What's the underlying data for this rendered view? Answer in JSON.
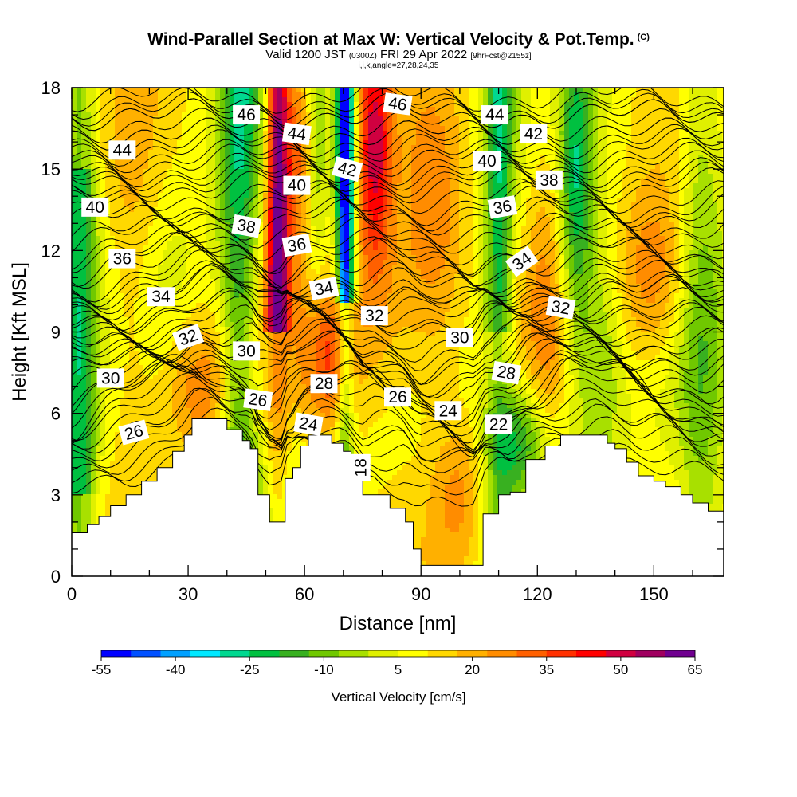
{
  "title": {
    "main": "Wind-Parallel Section at Max W: Vertical Velocity & Pot.Temp.",
    "copyright": "(C)",
    "valid_prefix": "Valid 1200 JST",
    "valid_utc": "(0300Z)",
    "valid_date": "FRI 29 Apr 2022",
    "forecast": "[9hrFcst@2155z]",
    "indices": "i,j,k,angle=27,28,24,35"
  },
  "chart_data": {
    "type": "heatmap",
    "xlabel": "Distance [nm]",
    "ylabel": "Height [Kft MSL]",
    "xlim": [
      0,
      168
    ],
    "ylim": [
      0,
      18
    ],
    "x_ticks": [
      "0",
      "30",
      "60",
      "90",
      "120",
      "150"
    ],
    "y_ticks": [
      "0",
      "3",
      "6",
      "9",
      "12",
      "15",
      "18"
    ],
    "colorbar": {
      "label": "Vertical Velocity [cm/s]",
      "tick_labels": [
        "-55",
        "-40",
        "-25",
        "-10",
        "5",
        "20",
        "35",
        "50",
        "65"
      ],
      "colors": [
        "#0000ff",
        "#0050ff",
        "#00a0ff",
        "#00e8ff",
        "#00d890",
        "#00c040",
        "#38b020",
        "#70c800",
        "#a8e000",
        "#e0f000",
        "#ffff00",
        "#ffd800",
        "#ffb000",
        "#ff8c00",
        "#ff6000",
        "#ff3000",
        "#ff0000",
        "#d00040",
        "#a00060",
        "#700090"
      ]
    },
    "terrain_kft": [
      [
        0,
        1.6
      ],
      [
        1,
        1.6
      ],
      [
        4,
        1.9
      ],
      [
        7,
        2.2
      ],
      [
        10,
        2.6
      ],
      [
        14,
        3.0
      ],
      [
        18,
        3.5
      ],
      [
        22,
        4.0
      ],
      [
        26,
        4.6
      ],
      [
        29,
        5.2
      ],
      [
        31,
        5.8
      ],
      [
        36,
        5.8
      ],
      [
        40,
        5.4
      ],
      [
        44,
        5.0
      ],
      [
        46,
        4.7
      ],
      [
        48,
        3.0
      ],
      [
        51,
        2.0
      ],
      [
        54,
        2.0
      ],
      [
        55,
        3.6
      ],
      [
        57,
        4.0
      ],
      [
        59,
        4.8
      ],
      [
        61,
        5.2
      ],
      [
        64,
        5.2
      ],
      [
        67,
        4.9
      ],
      [
        70,
        4.6
      ],
      [
        72,
        4.0
      ],
      [
        75,
        3.0
      ],
      [
        78,
        3.0
      ],
      [
        82,
        2.5
      ],
      [
        86,
        2.0
      ],
      [
        88,
        1.0
      ],
      [
        90,
        0.4
      ],
      [
        104,
        0.4
      ],
      [
        106,
        2.3
      ],
      [
        110,
        3.0
      ],
      [
        113,
        3.1
      ],
      [
        117,
        4.3
      ],
      [
        122,
        4.8
      ],
      [
        126,
        5.2
      ],
      [
        135,
        5.2
      ],
      [
        138,
        4.9
      ],
      [
        140,
        4.7
      ],
      [
        143,
        4.2
      ],
      [
        146,
        3.7
      ],
      [
        150,
        3.5
      ],
      [
        153,
        3.3
      ],
      [
        157,
        3.0
      ],
      [
        160,
        2.7
      ],
      [
        164,
        2.4
      ],
      [
        168,
        2.3
      ]
    ],
    "theta_contours": [
      {
        "level": "18",
        "base": 4.2,
        "amp": 0.2,
        "label_x": 74.5,
        "label_y": 4.0,
        "label_rot": -90
      },
      {
        "level": "22",
        "base": 5.2,
        "amp": 0.6,
        "label_x": 110,
        "label_y": 5.6,
        "label_rot": 0
      },
      {
        "level": "24",
        "base": 5.6,
        "amp": 0.6,
        "label_x": 61,
        "label_y": 5.6,
        "label_rot": 10
      },
      {
        "level": "24",
        "base": 5.9,
        "amp": 0.6,
        "label_x": 97,
        "label_y": 6.1,
        "label_rot": 0
      },
      {
        "level": "26",
        "base": 5.4,
        "amp": 1.0,
        "label_x": 16,
        "label_y": 5.3,
        "label_rot": -15
      },
      {
        "level": "26",
        "base": 6.3,
        "amp": 0.6,
        "label_x": 48,
        "label_y": 6.5,
        "label_rot": 8
      },
      {
        "level": "26",
        "base": 6.6,
        "amp": 0.5,
        "label_x": 84,
        "label_y": 6.6,
        "label_rot": 0
      },
      {
        "level": "28",
        "base": 6.9,
        "amp": 0.5,
        "label_x": 65,
        "label_y": 7.1,
        "label_rot": 0
      },
      {
        "level": "28",
        "base": 7.3,
        "amp": 0.5,
        "label_x": 112,
        "label_y": 7.5,
        "label_rot": 10
      },
      {
        "level": "30",
        "base": 7.8,
        "amp": 0.6,
        "label_x": 10,
        "label_y": 7.3,
        "label_rot": 0
      },
      {
        "level": "30",
        "base": 8.3,
        "amp": 0.5,
        "label_x": 45,
        "label_y": 8.3,
        "label_rot": 0
      },
      {
        "level": "30",
        "base": 8.6,
        "amp": 0.5,
        "label_x": 100,
        "label_y": 8.8,
        "label_rot": 0
      },
      {
        "level": "32",
        "base": 9.3,
        "amp": 0.5,
        "label_x": 30,
        "label_y": 8.8,
        "label_rot": -20
      },
      {
        "level": "32",
        "base": 9.6,
        "amp": 0.5,
        "label_x": 78,
        "label_y": 9.6,
        "label_rot": 0
      },
      {
        "level": "32",
        "base": 9.8,
        "amp": 0.5,
        "label_x": 126,
        "label_y": 9.9,
        "label_rot": 10
      },
      {
        "level": "34",
        "base": 10.4,
        "amp": 0.5,
        "label_x": 23,
        "label_y": 10.3,
        "label_rot": 0
      },
      {
        "level": "34",
        "base": 10.6,
        "amp": 0.5,
        "label_x": 65,
        "label_y": 10.6,
        "label_rot": -10
      },
      {
        "level": "34",
        "base": 11.3,
        "amp": 0.6,
        "label_x": 116,
        "label_y": 11.6,
        "label_rot": -35
      },
      {
        "level": "36",
        "base": 11.8,
        "amp": 0.5,
        "label_x": 13,
        "label_y": 11.7,
        "label_rot": 0
      },
      {
        "level": "36",
        "base": 12.2,
        "amp": 0.5,
        "label_x": 58,
        "label_y": 12.2,
        "label_rot": -10
      },
      {
        "level": "36",
        "base": 13.5,
        "amp": 0.5,
        "label_x": 111,
        "label_y": 13.6,
        "label_rot": -10
      },
      {
        "level": "38",
        "base": 12.9,
        "amp": 0.5,
        "label_x": 45,
        "label_y": 12.9,
        "label_rot": 10
      },
      {
        "level": "38",
        "base": 14.6,
        "amp": 0.4,
        "label_x": 123,
        "label_y": 14.6,
        "label_rot": 0
      },
      {
        "level": "40",
        "base": 13.7,
        "amp": 0.5,
        "label_x": 6,
        "label_y": 13.6,
        "label_rot": 0
      },
      {
        "level": "40",
        "base": 14.4,
        "amp": 0.4,
        "label_x": 58,
        "label_y": 14.4,
        "label_rot": 0
      },
      {
        "level": "40",
        "base": 15.3,
        "amp": 0.4,
        "label_x": 107,
        "label_y": 15.3,
        "label_rot": 0
      },
      {
        "level": "42",
        "base": 15.0,
        "amp": 0.4,
        "label_x": 71,
        "label_y": 15.0,
        "label_rot": 15
      },
      {
        "level": "42",
        "base": 16.3,
        "amp": 0.3,
        "label_x": 119,
        "label_y": 16.3,
        "label_rot": 0
      },
      {
        "level": "44",
        "base": 15.8,
        "amp": 0.4,
        "label_x": 13,
        "label_y": 15.7,
        "label_rot": 0
      },
      {
        "level": "44",
        "base": 16.3,
        "amp": 0.3,
        "label_x": 58,
        "label_y": 16.3,
        "label_rot": 8
      },
      {
        "level": "44",
        "base": 17.0,
        "amp": 0.3,
        "label_x": 109,
        "label_y": 17.0,
        "label_rot": 0
      },
      {
        "level": "46",
        "base": 17.0,
        "amp": 0.3,
        "label_x": 45,
        "label_y": 17.0,
        "label_rot": 0
      },
      {
        "level": "46",
        "base": 17.4,
        "amp": 0.3,
        "label_x": 84,
        "label_y": 17.4,
        "label_rot": 8
      }
    ],
    "extra_isentrope_heights": [
      2.4,
      2.8,
      3.2,
      3.6,
      4.0,
      4.6,
      5.0,
      6.0,
      7.1,
      7.6,
      8.0,
      8.9,
      9.0,
      9.9,
      10.1,
      11.0,
      11.6,
      12.5,
      13.2,
      14.0,
      14.8,
      15.5,
      16.0,
      16.6,
      17.2,
      17.7
    ]
  }
}
